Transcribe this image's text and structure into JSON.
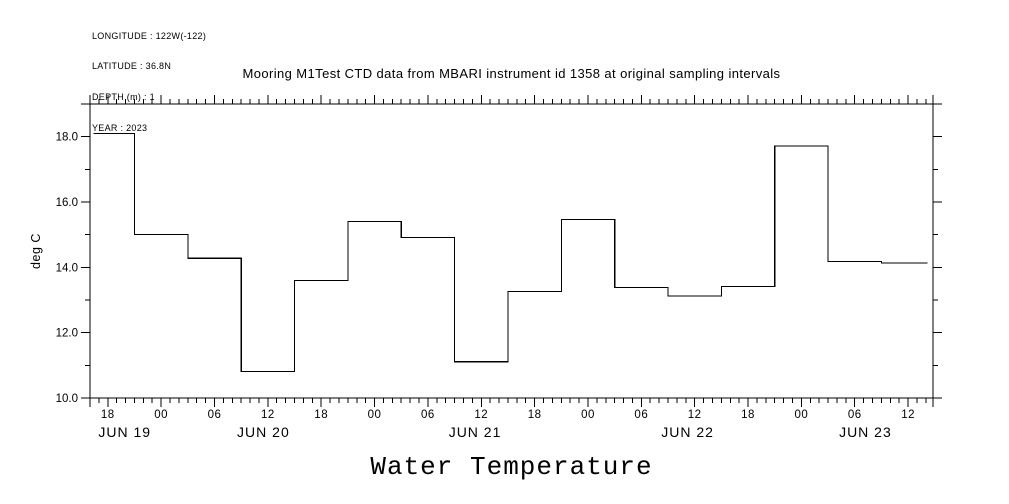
{
  "header": {
    "lines": [
      "LONGITUDE : 122W(-122)",
      "LATITUDE : 36.8N",
      "DEPTH (m) : 1",
      "YEAR : 2023"
    ]
  },
  "title": "Mooring M1Test CTD data from MBARI instrument id 1358 at original sampling intervals",
  "caption": "Water Temperature",
  "colors": {
    "line": "#000000",
    "text": "#000000",
    "background": "#ffffff"
  },
  "chart_data": {
    "type": "line",
    "subtype": "step-after",
    "title": "Mooring M1Test CTD data from MBARI instrument id 1358 at original sampling intervals",
    "xlabel": "Water Temperature",
    "ylabel": "deg C",
    "ylim": [
      10,
      19
    ],
    "y_tick_labels": [
      {
        "v": 10,
        "label": "10.0"
      },
      {
        "v": 12,
        "label": "12.0"
      },
      {
        "v": 14,
        "label": "14.0"
      },
      {
        "v": 16,
        "label": "16.0"
      },
      {
        "v": 18,
        "label": "18.0"
      }
    ],
    "y_minor_step": 1,
    "x_unit": "hours since JUN 19 00:00",
    "x_domain": [
      16.0,
      110.8
    ],
    "x_minor_step": 1,
    "x_tick_labels": [
      {
        "t": 18,
        "label": "18"
      },
      {
        "t": 24,
        "label": "00"
      },
      {
        "t": 30,
        "label": "06"
      },
      {
        "t": 36,
        "label": "12"
      },
      {
        "t": 42,
        "label": "18"
      },
      {
        "t": 48,
        "label": "00"
      },
      {
        "t": 54,
        "label": "06"
      },
      {
        "t": 60,
        "label": "12"
      },
      {
        "t": 66,
        "label": "18"
      },
      {
        "t": 72,
        "label": "00"
      },
      {
        "t": 78,
        "label": "06"
      },
      {
        "t": 84,
        "label": "12"
      },
      {
        "t": 90,
        "label": "18"
      },
      {
        "t": 96,
        "label": "00"
      },
      {
        "t": 102,
        "label": "06"
      },
      {
        "t": 108,
        "label": "12"
      }
    ],
    "day_labels": [
      {
        "t": 19.9,
        "label": "JUN 19"
      },
      {
        "t": 35.5,
        "label": "JUN 20"
      },
      {
        "t": 59.3,
        "label": "JUN 21"
      },
      {
        "t": 83.2,
        "label": "JUN 22"
      },
      {
        "t": 103.2,
        "label": "JUN 23"
      }
    ],
    "grid": false,
    "legend": false,
    "series": [
      {
        "name": "Water Temperature",
        "units": "deg C",
        "step_edges": [
          16.4,
          21,
          27,
          33,
          39,
          45,
          51,
          57,
          63,
          69,
          75,
          81,
          87,
          93,
          99,
          105,
          110.2
        ],
        "values": [
          18.1,
          15.01,
          14.28,
          10.81,
          13.6,
          15.41,
          14.92,
          11.11,
          13.26,
          15.46,
          13.38,
          13.13,
          13.41,
          17.71,
          14.18,
          14.13
        ]
      }
    ]
  }
}
